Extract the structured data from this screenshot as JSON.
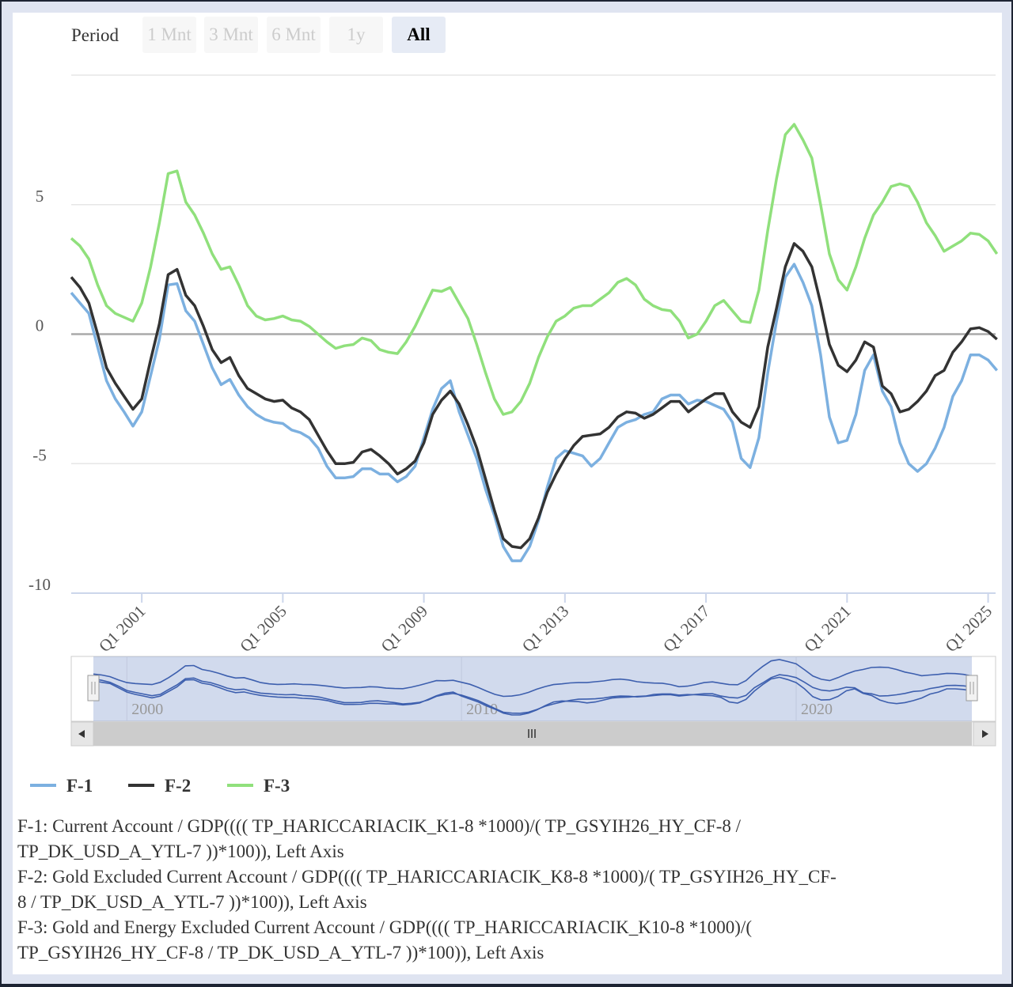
{
  "controls": {
    "period_label": "Period",
    "buttons": [
      "1 Mnt",
      "3 Mnt",
      "6 Mnt",
      "1y",
      "All"
    ],
    "selected": "All"
  },
  "chart_data": {
    "type": "line",
    "categories": [
      null,
      null,
      null,
      null,
      null,
      null,
      null,
      null,
      "Q1 2001",
      null,
      null,
      null,
      null,
      null,
      null,
      null,
      null,
      null,
      null,
      null,
      null,
      null,
      null,
      null,
      "Q1 2005",
      null,
      null,
      null,
      null,
      null,
      null,
      null,
      null,
      null,
      null,
      null,
      null,
      null,
      null,
      null,
      "Q1 2009",
      null,
      null,
      null,
      null,
      null,
      null,
      null,
      null,
      null,
      null,
      null,
      null,
      null,
      null,
      null,
      "Q1 2013",
      null,
      null,
      null,
      null,
      null,
      null,
      null,
      null,
      null,
      null,
      null,
      null,
      null,
      null,
      null,
      "Q1 2017",
      null,
      null,
      null,
      null,
      null,
      null,
      null,
      null,
      null,
      null,
      null,
      null,
      null,
      null,
      null,
      "Q1 2021",
      null,
      null,
      null,
      null,
      null,
      null,
      null,
      null,
      null,
      null,
      null,
      null,
      null,
      null,
      null,
      "Q1 2025",
      null
    ],
    "series": [
      {
        "name": "F-1",
        "color": "#7cb0e0",
        "values": [
          1.6,
          1.2,
          0.8,
          -0.5,
          -1.8,
          -2.5,
          -3.0,
          -3.55,
          -3.0,
          -1.6,
          -0.2,
          1.9,
          1.95,
          0.9,
          0.5,
          -0.4,
          -1.3,
          -1.95,
          -1.75,
          -2.35,
          -2.8,
          -3.1,
          -3.3,
          -3.4,
          -3.45,
          -3.7,
          -3.8,
          -4.0,
          -4.4,
          -5.1,
          -5.55,
          -5.55,
          -5.5,
          -5.2,
          -5.2,
          -5.4,
          -5.4,
          -5.7,
          -5.5,
          -5.1,
          -4.0,
          -2.9,
          -2.1,
          -1.8,
          -3.0,
          -3.9,
          -4.8,
          -6.0,
          -7.0,
          -8.2,
          -8.75,
          -8.75,
          -8.2,
          -7.2,
          -5.9,
          -4.8,
          -4.5,
          -4.6,
          -4.7,
          -5.1,
          -4.8,
          -4.2,
          -3.6,
          -3.4,
          -3.3,
          -3.1,
          -3.0,
          -2.5,
          -2.35,
          -2.35,
          -2.7,
          -2.55,
          -2.6,
          -2.75,
          -2.9,
          -3.4,
          -4.8,
          -5.15,
          -4.0,
          -1.5,
          0.5,
          2.2,
          2.7,
          2.0,
          1.1,
          -0.8,
          -3.2,
          -4.2,
          -4.1,
          -3.1,
          -1.4,
          -0.8,
          -2.2,
          -2.8,
          -4.2,
          -5.0,
          -5.3,
          -5.0,
          -4.4,
          -3.6,
          -2.4,
          -1.8,
          -0.8,
          -0.8,
          -1.0,
          -1.4
        ]
      },
      {
        "name": "F-2",
        "color": "#333333",
        "values": [
          2.2,
          1.8,
          1.2,
          0,
          -1.3,
          -1.9,
          -2.4,
          -2.9,
          -2.5,
          -1.0,
          0.4,
          2.3,
          2.5,
          1.5,
          1.1,
          0.3,
          -0.6,
          -1.1,
          -0.9,
          -1.6,
          -2.1,
          -2.3,
          -2.5,
          -2.6,
          -2.55,
          -2.85,
          -3.0,
          -3.3,
          -3.9,
          -4.5,
          -5.0,
          -5.0,
          -4.95,
          -4.55,
          -4.45,
          -4.7,
          -5.0,
          -5.4,
          -5.2,
          -4.9,
          -4.2,
          -3.1,
          -2.55,
          -2.2,
          -2.7,
          -3.5,
          -4.4,
          -5.6,
          -6.8,
          -7.9,
          -8.2,
          -8.25,
          -7.9,
          -7.1,
          -6.1,
          -5.4,
          -4.8,
          -4.3,
          -3.95,
          -3.9,
          -3.85,
          -3.6,
          -3.2,
          -3.0,
          -3.05,
          -3.25,
          -3.1,
          -2.85,
          -2.6,
          -2.6,
          -3.0,
          -2.75,
          -2.5,
          -2.3,
          -2.3,
          -3.0,
          -3.4,
          -3.6,
          -2.8,
          -0.5,
          1.0,
          2.6,
          3.5,
          3.2,
          2.6,
          1.2,
          -0.4,
          -1.2,
          -1.45,
          -1.0,
          -0.3,
          -0.5,
          -2.0,
          -2.3,
          -3.0,
          -2.9,
          -2.6,
          -2.2,
          -1.6,
          -1.4,
          -0.7,
          -0.3,
          0.2,
          0.25,
          0.1,
          -0.2
        ]
      },
      {
        "name": "F-3",
        "color": "#90e07c",
        "values": [
          3.7,
          3.4,
          2.9,
          1.9,
          1.1,
          0.8,
          0.65,
          0.5,
          1.2,
          2.6,
          4.3,
          6.2,
          6.3,
          5.1,
          4.6,
          3.9,
          3.1,
          2.5,
          2.6,
          1.9,
          1.1,
          0.7,
          0.55,
          0.6,
          0.7,
          0.55,
          0.5,
          0.3,
          0,
          -0.3,
          -0.55,
          -0.45,
          -0.4,
          -0.15,
          -0.25,
          -0.6,
          -0.7,
          -0.75,
          -0.3,
          0.3,
          1.0,
          1.7,
          1.65,
          1.8,
          1.2,
          0.6,
          -0.4,
          -1.5,
          -2.5,
          -3.1,
          -3.0,
          -2.6,
          -1.9,
          -0.9,
          -0.1,
          0.5,
          0.7,
          1.0,
          1.1,
          1.1,
          1.35,
          1.6,
          2.0,
          2.15,
          1.9,
          1.35,
          1.1,
          0.95,
          0.9,
          0.5,
          -0.15,
          0,
          0.5,
          1.1,
          1.3,
          0.9,
          0.5,
          0.45,
          1.7,
          4.0,
          6.0,
          7.7,
          8.1,
          7.5,
          6.8,
          5.0,
          3.1,
          2.1,
          1.7,
          2.6,
          3.7,
          4.6,
          5.1,
          5.7,
          5.8,
          5.7,
          5.1,
          4.3,
          3.8,
          3.2,
          3.4,
          3.6,
          3.9,
          3.85,
          3.6,
          3.1
        ]
      }
    ],
    "ylim": [
      -10,
      10
    ],
    "yticks": [
      -10,
      -5,
      0,
      5
    ],
    "grid": true,
    "navigator": {
      "labels": [
        "2000",
        "2010",
        "2020"
      ]
    }
  },
  "notes": [
    "F-1: Current Account / GDP(((( TP_HARICCARIACIK_K1-8 *1000)/( TP_GSYIH26_HY_CF-8 / TP_DK_USD_A_YTL-7 ))*100)), Left Axis",
    "F-2: Gold Excluded Current Account / GDP(((( TP_HARICCARIACIK_K8-8 *1000)/( TP_GSYIH26_HY_CF-8 / TP_DK_USD_A_YTL-7 ))*100)), Left Axis",
    "F-3: Gold and Energy Excluded Current Account / GDP(((( TP_HARICCARIACIK_K10-8 *1000)/( TP_GSYIH26_HY_CF-8 / TP_DK_USD_A_YTL-7 ))*100)), Left Axis"
  ]
}
